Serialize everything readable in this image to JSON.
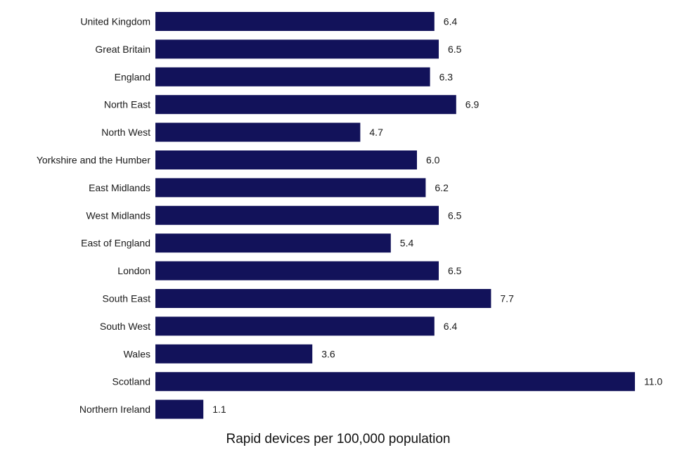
{
  "chart_data": {
    "type": "bar",
    "orientation": "horizontal",
    "categories": [
      "United Kingdom",
      "Great Britain",
      "England",
      "North East",
      "North West",
      "Yorkshire and the Humber",
      "East Midlands",
      "West Midlands",
      "East of England",
      "London",
      "South East",
      "South West",
      "Wales",
      "Scotland",
      "Northern Ireland"
    ],
    "values": [
      6.4,
      6.5,
      6.3,
      6.9,
      4.7,
      6.0,
      6.2,
      6.5,
      5.4,
      6.5,
      7.7,
      6.4,
      3.6,
      11.0,
      1.1
    ],
    "value_labels": [
      "6.4",
      "6.5",
      "6.3",
      "6.9",
      "4.7",
      "6.0",
      "6.2",
      "6.5",
      "5.4",
      "6.5",
      "7.7",
      "6.4",
      "3.6",
      "11.0",
      "1.1"
    ],
    "title": "",
    "xlabel": "Rapid devices per 100,000 population",
    "ylabel": "",
    "xlim": [
      0,
      11
    ],
    "grid": false,
    "legend": "none",
    "bar_color": "#12125a"
  }
}
